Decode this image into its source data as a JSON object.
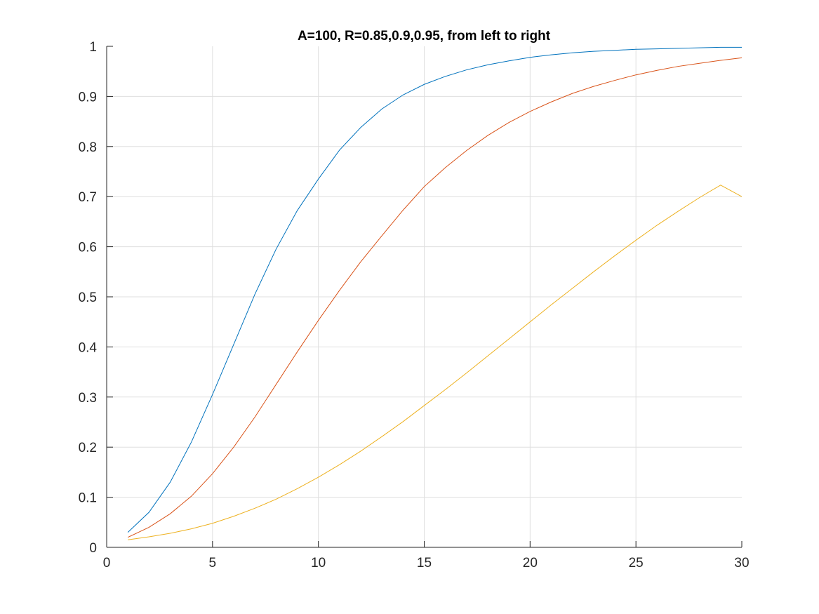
{
  "chart_data": {
    "type": "line",
    "title": "A=100, R=0.85,0.9,0.95, from left to right",
    "xlabel": "",
    "ylabel": "",
    "xlim": [
      0,
      30
    ],
    "ylim": [
      0,
      1
    ],
    "xticks": [
      0,
      5,
      10,
      15,
      20,
      25,
      30
    ],
    "xtick_labels": [
      "0",
      "5",
      "10",
      "15",
      "20",
      "25",
      "30"
    ],
    "yticks": [
      0,
      0.1,
      0.2,
      0.3,
      0.4,
      0.5,
      0.6,
      0.7,
      0.8,
      0.9,
      1
    ],
    "ytick_labels": [
      "0",
      "0.1",
      "0.2",
      "0.3",
      "0.4",
      "0.5",
      "0.6",
      "0.7",
      "0.8",
      "0.9",
      "1"
    ],
    "grid": true,
    "legend": "none",
    "x": [
      1,
      2,
      3,
      4,
      5,
      6,
      7,
      8,
      9,
      10,
      11,
      12,
      13,
      14,
      15,
      16,
      17,
      18,
      19,
      20,
      21,
      22,
      23,
      24,
      25,
      26,
      27,
      28,
      29,
      30
    ],
    "series": [
      {
        "color": "#0072bd",
        "values": [
          0.03,
          0.07,
          0.13,
          0.21,
          0.305,
          0.405,
          0.505,
          0.595,
          0.672,
          0.735,
          0.793,
          0.838,
          0.875,
          0.903,
          0.924,
          0.94,
          0.953,
          0.963,
          0.971,
          0.978,
          0.983,
          0.987,
          0.99,
          0.992,
          0.994,
          0.995,
          0.996,
          0.997,
          0.998,
          0.998
        ]
      },
      {
        "color": "#d95319",
        "values": [
          0.02,
          0.04,
          0.067,
          0.102,
          0.147,
          0.2,
          0.26,
          0.325,
          0.39,
          0.453,
          0.513,
          0.57,
          0.622,
          0.673,
          0.72,
          0.758,
          0.792,
          0.822,
          0.848,
          0.87,
          0.889,
          0.906,
          0.92,
          0.932,
          0.943,
          0.952,
          0.96,
          0.966,
          0.972,
          0.977
        ]
      },
      {
        "color": "#edb120",
        "values": [
          0.015,
          0.021,
          0.028,
          0.037,
          0.048,
          0.062,
          0.078,
          0.096,
          0.117,
          0.14,
          0.165,
          0.192,
          0.221,
          0.251,
          0.283,
          0.315,
          0.348,
          0.382,
          0.416,
          0.45,
          0.484,
          0.517,
          0.55,
          0.582,
          0.613,
          0.643,
          0.671,
          0.698,
          0.723,
          0.7
        ]
      }
    ]
  }
}
